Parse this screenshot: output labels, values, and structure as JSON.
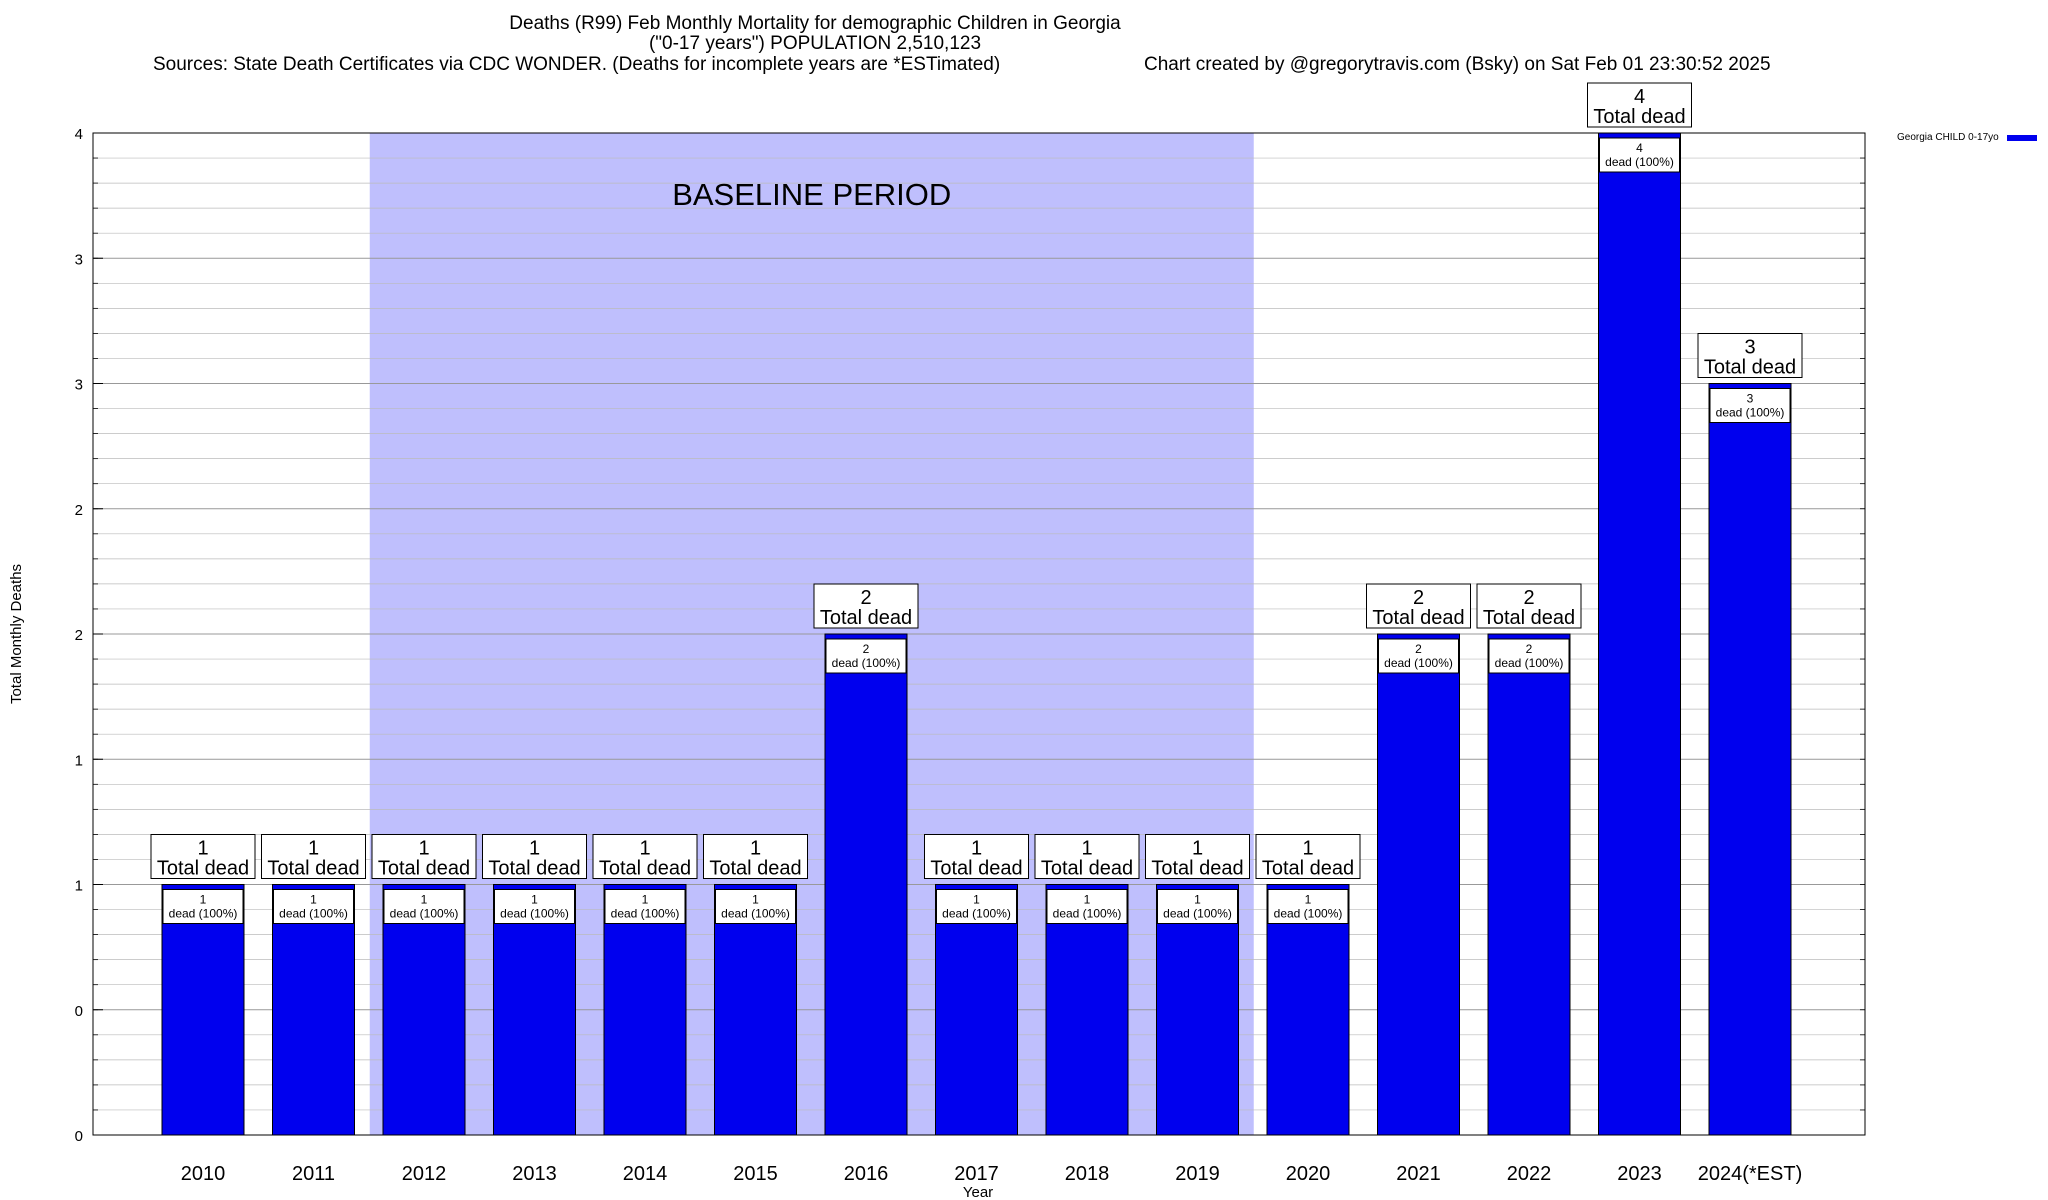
{
  "chart_data": {
    "type": "bar",
    "title": "Deaths (R99) Feb Monthly Mortality for demographic Children in Georgia",
    "subtitle": "(\"0-17 years\") POPULATION 2,510,123",
    "sources": "Sources: State Death Certificates via CDC WONDER. (Deaths for incomplete years are *ESTimated)",
    "credit": "Chart created by @gregorytravis.com (Bsky) on Sat Feb 01 23:30:52 2025",
    "xlabel": "Year",
    "ylabel": "Total Monthly Deaths",
    "ylim": [
      0,
      4
    ],
    "y_tick_values": [
      0,
      0.5,
      1,
      1.5,
      2,
      2.5,
      3,
      3.5,
      4
    ],
    "y_tick_labels": [
      "0",
      "0",
      "1",
      "1",
      "2",
      "2",
      "3",
      "3",
      "4"
    ],
    "categories": [
      "2010",
      "2011",
      "2012",
      "2013",
      "2014",
      "2015",
      "2016",
      "2017",
      "2018",
      "2019",
      "2020",
      "2021",
      "2022",
      "2023",
      "2024(*EST)"
    ],
    "series": [
      {
        "name": "Georgia CHILD 0-17yo",
        "color": "#0000ee",
        "values": [
          1,
          1,
          1,
          1,
          1,
          1,
          2,
          1,
          1,
          1,
          1,
          2,
          2,
          4,
          3
        ]
      }
    ],
    "total_labels": [
      "1",
      "1",
      "1",
      "1",
      "1",
      "1",
      "2",
      "1",
      "1",
      "1",
      "1",
      "2",
      "2",
      "4",
      "3"
    ],
    "inner_labels": [
      "1",
      "1",
      "1",
      "1",
      "1",
      "1",
      "2",
      "1",
      "1",
      "1",
      "1",
      "2",
      "2",
      "4",
      "3"
    ],
    "total_suffix": "Total dead",
    "inner_suffix": "dead (100%)",
    "baseline": {
      "label": "BASELINE PERIOD",
      "from": "2012",
      "to": "2019",
      "color": "#bfbffd"
    },
    "grid": true,
    "legend": "top-right"
  }
}
